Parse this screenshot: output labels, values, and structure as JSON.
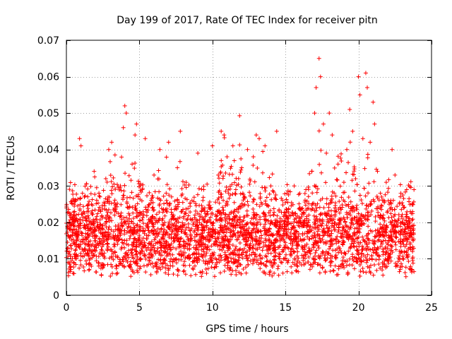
{
  "chart_data": {
    "type": "scatter",
    "title": "Day 199 of 2017, Rate Of TEC Index for receiver pitn",
    "xlabel": "GPS time / hours",
    "ylabel": "ROTI / TECUs",
    "xlim": [
      0,
      25
    ],
    "ylim": [
      0,
      0.07
    ],
    "xticks": [
      0,
      5,
      10,
      15,
      20,
      25
    ],
    "xtick_labels": [
      "0",
      "5",
      "10",
      "15",
      "20",
      "25"
    ],
    "yticks": [
      0,
      0.01,
      0.02,
      0.03,
      0.04,
      0.05,
      0.06,
      0.07
    ],
    "ytick_labels": [
      "0",
      "0.01",
      "0.02",
      "0.03",
      "0.04",
      "0.05",
      "0.06",
      "0.07"
    ],
    "grid": true,
    "marker": "+",
    "color": "#ff0000",
    "x_data_range": [
      0,
      23.8
    ],
    "series": [
      {
        "name": "ROTI",
        "points": [
          [
            0.1,
            0.013
          ],
          [
            0.3,
            0.018
          ],
          [
            0.5,
            0.009
          ],
          [
            0.7,
            0.021
          ],
          [
            0.9,
            0.043
          ],
          [
            1.0,
            0.041
          ],
          [
            1.1,
            0.028
          ],
          [
            1.3,
            0.016
          ],
          [
            1.5,
            0.025
          ],
          [
            1.7,
            0.012
          ],
          [
            1.9,
            0.034
          ],
          [
            2.1,
            0.019
          ],
          [
            2.3,
            0.027
          ],
          [
            2.5,
            0.011
          ],
          [
            2.7,
            0.032
          ],
          [
            2.9,
            0.04
          ],
          [
            3.1,
            0.042
          ],
          [
            3.3,
            0.022
          ],
          [
            3.5,
            0.014
          ],
          [
            3.7,
            0.03
          ],
          [
            3.9,
            0.046
          ],
          [
            4.0,
            0.052
          ],
          [
            4.1,
            0.05
          ],
          [
            4.3,
            0.024
          ],
          [
            4.5,
            0.036
          ],
          [
            4.7,
            0.044
          ],
          [
            4.8,
            0.047
          ],
          [
            5.0,
            0.018
          ],
          [
            5.2,
            0.029
          ],
          [
            5.4,
            0.043
          ],
          [
            5.6,
            0.013
          ],
          [
            5.8,
            0.026
          ],
          [
            6.0,
            0.033
          ],
          [
            6.2,
            0.017
          ],
          [
            6.4,
            0.04
          ],
          [
            6.6,
            0.021
          ],
          [
            6.8,
            0.012
          ],
          [
            7.0,
            0.042
          ],
          [
            7.2,
            0.027
          ],
          [
            7.4,
            0.015
          ],
          [
            7.6,
            0.035
          ],
          [
            7.8,
            0.045
          ],
          [
            8.0,
            0.019
          ],
          [
            8.2,
            0.031
          ],
          [
            8.4,
            0.01
          ],
          [
            8.6,
            0.026
          ],
          [
            8.8,
            0.022
          ],
          [
            9.0,
            0.039
          ],
          [
            9.2,
            0.014
          ],
          [
            9.4,
            0.029
          ],
          [
            9.6,
            0.006
          ],
          [
            9.8,
            0.024
          ],
          [
            10.0,
            0.041
          ],
          [
            10.2,
            0.018
          ],
          [
            10.4,
            0.033
          ],
          [
            10.6,
            0.045
          ],
          [
            10.8,
            0.044
          ],
          [
            11.0,
            0.038
          ],
          [
            11.2,
            0.021
          ],
          [
            11.4,
            0.041
          ],
          [
            11.6,
            0.029
          ],
          [
            11.8,
            0.016
          ],
          [
            12.0,
            0.035
          ],
          [
            12.2,
            0.027
          ],
          [
            12.4,
            0.04
          ],
          [
            12.6,
            0.02
          ],
          [
            12.8,
            0.038
          ],
          [
            13.0,
            0.044
          ],
          [
            13.2,
            0.043
          ],
          [
            13.4,
            0.025
          ],
          [
            13.6,
            0.041
          ],
          [
            13.8,
            0.018
          ],
          [
            14.0,
            0.03
          ],
          [
            14.2,
            0.022
          ],
          [
            14.4,
            0.045
          ],
          [
            14.6,
            0.016
          ],
          [
            14.8,
            0.026
          ],
          [
            15.0,
            0.013
          ],
          [
            15.2,
            0.021
          ],
          [
            15.4,
            0.018
          ],
          [
            15.6,
            0.03
          ],
          [
            15.8,
            0.014
          ],
          [
            16.0,
            0.024
          ],
          [
            16.2,
            0.019
          ],
          [
            16.4,
            0.029
          ],
          [
            16.6,
            0.022
          ],
          [
            16.8,
            0.034
          ],
          [
            17.0,
            0.05
          ],
          [
            17.1,
            0.057
          ],
          [
            17.3,
            0.065
          ],
          [
            17.4,
            0.06
          ],
          [
            17.6,
            0.047
          ],
          [
            17.8,
            0.039
          ],
          [
            18.0,
            0.05
          ],
          [
            18.2,
            0.044
          ],
          [
            18.4,
            0.024
          ],
          [
            18.6,
            0.036
          ],
          [
            18.8,
            0.021
          ],
          [
            19.0,
            0.031
          ],
          [
            19.2,
            0.04
          ],
          [
            19.4,
            0.051
          ],
          [
            19.6,
            0.045
          ],
          [
            19.8,
            0.032
          ],
          [
            20.0,
            0.06
          ],
          [
            20.1,
            0.055
          ],
          [
            20.3,
            0.043
          ],
          [
            20.5,
            0.061
          ],
          [
            20.6,
            0.057
          ],
          [
            20.8,
            0.042
          ],
          [
            21.0,
            0.053
          ],
          [
            21.1,
            0.047
          ],
          [
            21.3,
            0.034
          ],
          [
            21.5,
            0.028
          ],
          [
            21.7,
            0.022
          ],
          [
            21.9,
            0.031
          ],
          [
            22.1,
            0.025
          ],
          [
            22.3,
            0.04
          ],
          [
            22.5,
            0.033
          ],
          [
            22.7,
            0.019
          ],
          [
            22.9,
            0.028
          ],
          [
            23.1,
            0.024
          ],
          [
            23.3,
            0.029
          ],
          [
            23.5,
            0.017
          ],
          [
            23.7,
            0.012
          ],
          [
            23.8,
            0.029
          ]
        ],
        "background_density": {
          "description": "dense cloud of additional + markers across 0-23.8 h",
          "typical_min": 0.006,
          "typical_max": 0.032,
          "median": 0.016
        }
      }
    ]
  }
}
